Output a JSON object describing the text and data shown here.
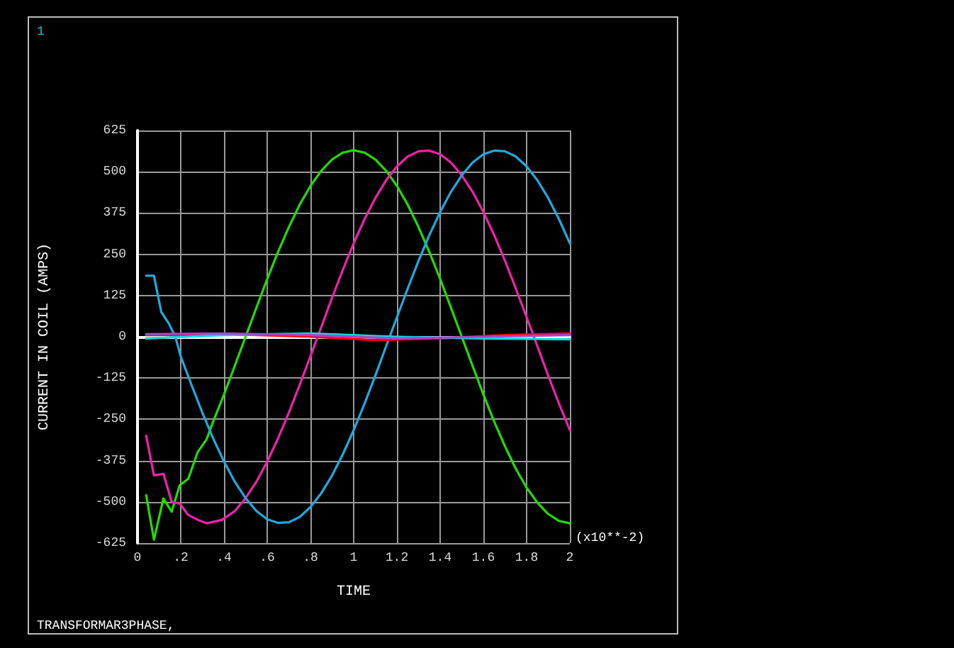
{
  "chart_data": {
    "type": "line",
    "xlabel": "TIME",
    "ylabel": "CURRENT IN COIL (AMPS)",
    "annotations": [
      "1",
      "(x10**-2)",
      "TRANSFORMAR3PHASE,"
    ],
    "xlim": [
      0,
      2
    ],
    "xticks": [
      0,
      {
        "value": 0.2,
        "label": ".2"
      },
      {
        "value": 0.4,
        "label": ".4"
      },
      {
        "value": 0.6,
        "label": ".6"
      },
      {
        "value": 0.8,
        "label": ".8"
      },
      1,
      1.2,
      1.4,
      1.6,
      1.8,
      2
    ],
    "ylim": [
      -625,
      625
    ],
    "yticks": [
      -625,
      -500,
      -375,
      -250,
      -125,
      0,
      125,
      250,
      375,
      500,
      625
    ],
    "grid": true,
    "marker": "none",
    "line_style": "solid",
    "series": [
      {
        "color": "#22dd00",
        "x": [
          0.04,
          0.076,
          0.12,
          0.158,
          0.195,
          0.235,
          0.278,
          0.32,
          0.35,
          0.4,
          0.45,
          0.5,
          0.55,
          0.6,
          0.65,
          0.7,
          0.75,
          0.8,
          0.85,
          0.9,
          0.95,
          1.0,
          1.05,
          1.1,
          1.15,
          1.2,
          1.25,
          1.3,
          1.35,
          1.4,
          1.45,
          1.5,
          1.55,
          1.6,
          1.65,
          1.7,
          1.75,
          1.8,
          1.85,
          1.9,
          1.95,
          2.0
        ],
        "values": [
          -480,
          -615,
          -490,
          -530,
          -450,
          -430,
          -350,
          -310,
          -257,
          -175,
          -88,
          0,
          88,
          175,
          257,
          332,
          400,
          457,
          503,
          537,
          558,
          565,
          558,
          537,
          503,
          457,
          400,
          332,
          257,
          175,
          88,
          0,
          -88,
          -175,
          -257,
          -332,
          -400,
          -457,
          -503,
          -537,
          -558,
          -565
        ]
      },
      {
        "color": "#ee22aa",
        "x": [
          0.04,
          0.076,
          0.12,
          0.158,
          0.195,
          0.235,
          0.28,
          0.32,
          0.39,
          0.45,
          0.5,
          0.55,
          0.6,
          0.65,
          0.7,
          0.75,
          0.8,
          0.85,
          0.9,
          0.95,
          1.0,
          1.05,
          1.1,
          1.15,
          1.2,
          1.25,
          1.3,
          1.35,
          1.4,
          1.45,
          1.5,
          1.55,
          1.6,
          1.65,
          1.7,
          1.75,
          1.8,
          1.85,
          1.9,
          1.95,
          2.0
        ],
        "values": [
          -300,
          -420,
          -415,
          -500,
          -505,
          -540,
          -555,
          -565,
          -555,
          -528,
          -489,
          -439,
          -378,
          -308,
          -230,
          -146,
          -59,
          29,
          118,
          203,
          283,
          356,
          420,
          474,
          516,
          546,
          562,
          564,
          553,
          528,
          489,
          439,
          378,
          308,
          230,
          146,
          59,
          -29,
          -118,
          -203,
          -283
        ]
      },
      {
        "color": "#1eaadd",
        "x": [
          0.04,
          0.076,
          0.11,
          0.145,
          0.175,
          0.2,
          0.25,
          0.3,
          0.35,
          0.4,
          0.45,
          0.5,
          0.55,
          0.6,
          0.65,
          0.7,
          0.75,
          0.8,
          0.85,
          0.9,
          0.95,
          1.0,
          1.05,
          1.1,
          1.15,
          1.2,
          1.25,
          1.3,
          1.35,
          1.4,
          1.45,
          1.5,
          1.55,
          1.6,
          1.65,
          1.7,
          1.75,
          1.8,
          1.85,
          1.9,
          1.95,
          2.0
        ],
        "values": [
          185,
          185,
          75,
          40,
          0,
          -60,
          -146,
          -230,
          -308,
          -378,
          -439,
          -489,
          -528,
          -553,
          -564,
          -562,
          -546,
          -516,
          -474,
          -420,
          -356,
          -283,
          -203,
          -118,
          -29,
          59,
          146,
          230,
          308,
          378,
          439,
          489,
          528,
          553,
          564,
          562,
          546,
          516,
          474,
          420,
          356,
          283
        ]
      },
      {
        "color": "#ff0000",
        "x": [
          0.04,
          0.4,
          0.8,
          1.1,
          1.4,
          1.7,
          2.0
        ],
        "values": [
          5,
          8,
          0,
          -10,
          -5,
          5,
          10
        ]
      },
      {
        "color": "#00dddd",
        "x": [
          0.04,
          0.4,
          0.8,
          1.2,
          1.6,
          2.0
        ],
        "values": [
          -5,
          5,
          10,
          0,
          -5,
          -8
        ]
      },
      {
        "color": "#aa44cc",
        "x": [
          0.04,
          0.4,
          0.8,
          1.2,
          1.6,
          2.0
        ],
        "values": [
          8,
          10,
          5,
          -5,
          0,
          5
        ]
      }
    ]
  }
}
